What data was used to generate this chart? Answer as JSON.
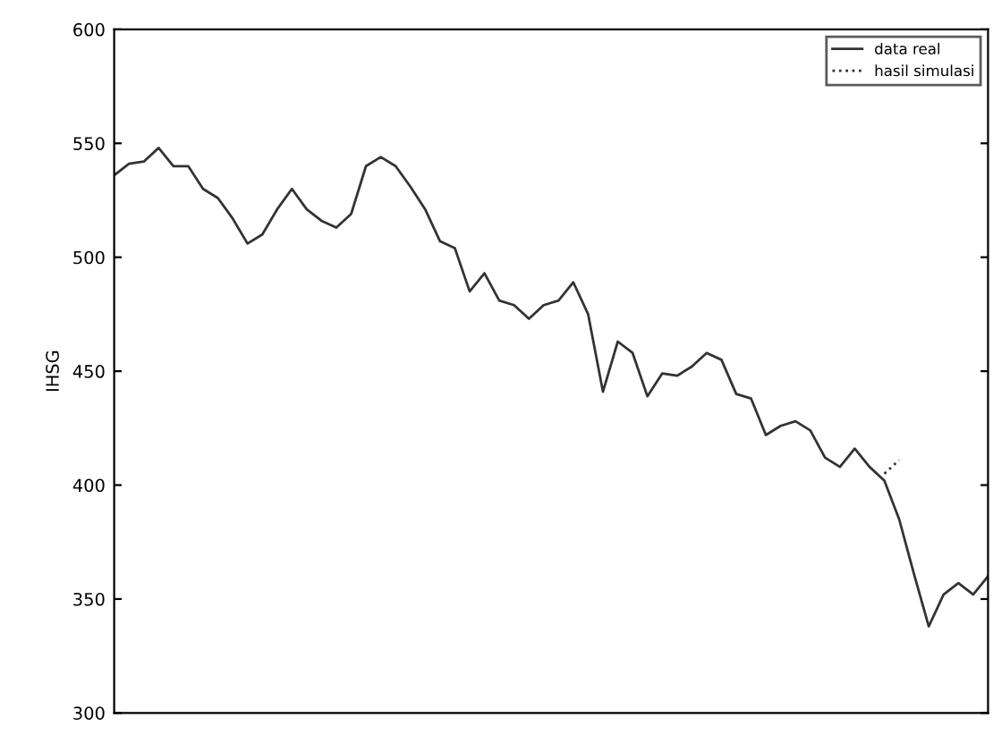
{
  "chart_data": {
    "type": "line",
    "ylabel": "IHSG",
    "categories": [
      null,
      null,
      null,
      null,
      null,
      null,
      null,
      null,
      null,
      null,
      null,
      null,
      null,
      null,
      null,
      null,
      null,
      null,
      null,
      null,
      null,
      null,
      null,
      null,
      null,
      null,
      null,
      null,
      null,
      null,
      null,
      null,
      null,
      null,
      null,
      null,
      null,
      null,
      null,
      null,
      null,
      null,
      null,
      null,
      null,
      null,
      null,
      null,
      null,
      null,
      null,
      null,
      null,
      null,
      null,
      null,
      null,
      null,
      null,
      null
    ],
    "ylim": [
      300,
      600
    ],
    "yticks": [
      300,
      350,
      400,
      450,
      500,
      550,
      600
    ],
    "legend": "top right",
    "series": [
      {
        "name": "data real",
        "color": "#333333",
        "line_style": "solid",
        "values": [
          536,
          541,
          542,
          548,
          540,
          540,
          530,
          526,
          517,
          506,
          510,
          521,
          530,
          521,
          516,
          513,
          519,
          540,
          544,
          540,
          531,
          521,
          507,
          504,
          485,
          493,
          481,
          479,
          473,
          479,
          481,
          489,
          475,
          441,
          463,
          458,
          439,
          449,
          448,
          452,
          458,
          455,
          440,
          438,
          422,
          426,
          428,
          424,
          412,
          408,
          416,
          408,
          402,
          385,
          361,
          338,
          352,
          357,
          352,
          360
        ]
      },
      {
        "name": "hasil simulasi",
        "color": "#333333",
        "line_style": "dotted",
        "values": [
          null,
          null,
          null,
          null,
          null,
          null,
          null,
          null,
          null,
          null,
          null,
          null,
          null,
          null,
          null,
          null,
          null,
          null,
          null,
          null,
          null,
          null,
          null,
          null,
          null,
          null,
          null,
          null,
          null,
          null,
          null,
          null,
          null,
          null,
          null,
          null,
          null,
          null,
          null,
          null,
          null,
          null,
          null,
          null,
          null,
          null,
          null,
          null,
          null,
          null,
          null,
          null,
          405,
          411,
          null,
          null,
          null,
          null,
          null,
          null
        ]
      }
    ]
  }
}
